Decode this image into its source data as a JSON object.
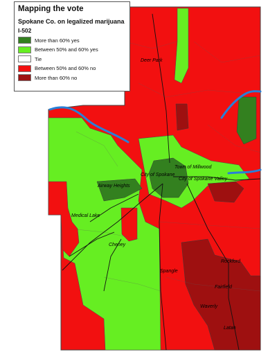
{
  "legend": {
    "title": "Mapping the vote",
    "subtitle": "Spokane Co. on legalized marijuana",
    "measure": "I-502",
    "items": [
      {
        "label": "More than 60% yes",
        "color": "#33801f"
      },
      {
        "label": "Between 50% and 60% yes",
        "color": "#66ee22"
      },
      {
        "label": "Tie",
        "color": "#ffffff"
      },
      {
        "label": "Between 50% and 60% no",
        "color": "#f21010"
      },
      {
        "label": "More than 60% no",
        "color": "#9e1010"
      }
    ]
  },
  "places": {
    "deer_park": "Deer Park",
    "town_of_millwood": "Town of Millwood",
    "city_of_spokane": "City of Spokane",
    "city_of_spokane_valley": "City of Spokane Valley",
    "airway_heights": "Airway Heights",
    "medical_lake": "Medical Lake",
    "cheney": "Cheney",
    "spangle": "Spangle",
    "rockford": "Rockford",
    "fairfield": "Fairfield",
    "waverly": "Waverly",
    "latah": "Latah"
  },
  "colors": {
    "water": "#2a7fd6",
    "county_border": "#444444"
  }
}
